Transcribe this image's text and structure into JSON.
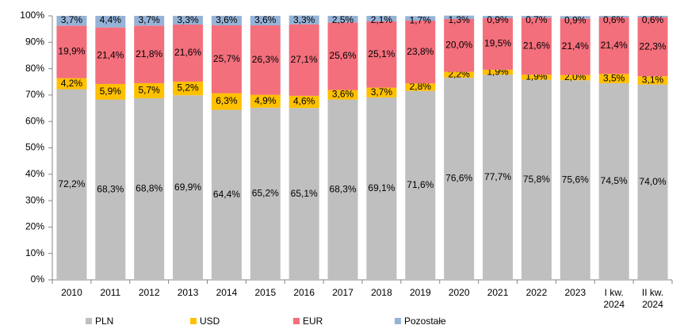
{
  "chart_data": {
    "type": "stacked_bar",
    "categories": [
      "2010",
      "2011",
      "2012",
      "2013",
      "2014",
      "2015",
      "2016",
      "2017",
      "2018",
      "2019",
      "2020",
      "2021",
      "2022",
      "2023",
      "I kw. 2024",
      "II kw. 2024"
    ],
    "series": [
      {
        "name": "PLN",
        "color": "#bfbfbf",
        "values": [
          72.2,
          68.3,
          68.8,
          69.9,
          64.4,
          65.2,
          65.1,
          68.3,
          69.1,
          71.6,
          76.6,
          77.7,
          75.8,
          75.6,
          74.5,
          74.0
        ],
        "value_labels": [
          "72,2%",
          "68,3%",
          "68,8%",
          "69,9%",
          "64,4%",
          "65,2%",
          "65,1%",
          "68,3%",
          "69,1%",
          "71,6%",
          "76,6%",
          "77,7%",
          "75,8%",
          "75,6%",
          "74,5%",
          "74,0%"
        ]
      },
      {
        "name": "USD",
        "color": "#ffc000",
        "values": [
          4.2,
          5.9,
          5.7,
          5.2,
          6.3,
          4.9,
          4.6,
          3.6,
          3.7,
          2.8,
          2.2,
          1.9,
          1.9,
          2.0,
          3.5,
          3.1
        ],
        "value_labels": [
          "4,2%",
          "5,9%",
          "5,7%",
          "5,2%",
          "6,3%",
          "4,9%",
          "4,6%",
          "3,6%",
          "3,7%",
          "2,8%",
          "2,2%",
          "1,9%",
          "1,9%",
          "2,0%",
          "3,5%",
          "3,1%"
        ]
      },
      {
        "name": "EUR",
        "color": "#f36f7c",
        "values": [
          19.9,
          21.4,
          21.8,
          21.6,
          25.7,
          26.3,
          27.1,
          25.6,
          25.1,
          23.8,
          20.0,
          19.5,
          21.6,
          21.4,
          21.4,
          22.3
        ],
        "value_labels": [
          "19,9%",
          "21,4%",
          "21,8%",
          "21,6%",
          "25,7%",
          "26,3%",
          "27,1%",
          "25,6%",
          "25,1%",
          "23,8%",
          "20,0%",
          "19,5%",
          "21,6%",
          "21,4%",
          "21,4%",
          "22,3%"
        ]
      },
      {
        "name": "Pozostałe",
        "color": "#95b3d7",
        "values": [
          3.7,
          4.4,
          3.7,
          3.3,
          3.6,
          3.6,
          3.3,
          2.5,
          2.1,
          1.7,
          1.3,
          0.9,
          0.7,
          0.9,
          0.6,
          0.6
        ],
        "value_labels": [
          "3,7%",
          "4,4%",
          "3,7%",
          "3,3%",
          "3,6%",
          "3,6%",
          "3,3%",
          "2,5%",
          "2,1%",
          "1,7%",
          "1,3%",
          "0,9%",
          "0,7%",
          "0,9%",
          "0,6%",
          "0,6%"
        ]
      }
    ],
    "ylim": [
      0,
      100
    ],
    "yticks": [
      {
        "value": 0,
        "label": "0%"
      },
      {
        "value": 10,
        "label": "10%"
      },
      {
        "value": 20,
        "label": "20%"
      },
      {
        "value": 30,
        "label": "30%"
      },
      {
        "value": 40,
        "label": "40%"
      },
      {
        "value": 50,
        "label": "50%"
      },
      {
        "value": 60,
        "label": "60%"
      },
      {
        "value": 70,
        "label": "70%"
      },
      {
        "value": 80,
        "label": "80%"
      },
      {
        "value": 90,
        "label": "90%"
      },
      {
        "value": 100,
        "label": "100%"
      }
    ],
    "grid": false,
    "legend": "bottom"
  }
}
